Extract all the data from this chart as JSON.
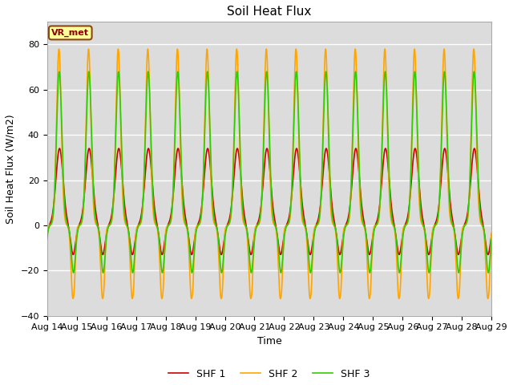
{
  "title": "Soil Heat Flux",
  "ylabel": "Soil Heat Flux (W/m2)",
  "xlabel": "Time",
  "ylim": [
    -40,
    90
  ],
  "yticks": [
    -40,
    -20,
    0,
    20,
    40,
    60,
    80
  ],
  "date_labels": [
    "Aug 14",
    "Aug 15",
    "Aug 16",
    "Aug 17",
    "Aug 18",
    "Aug 19",
    "Aug 20",
    "Aug 21",
    "Aug 22",
    "Aug 23",
    "Aug 24",
    "Aug 25",
    "Aug 26",
    "Aug 27",
    "Aug 28",
    "Aug 29"
  ],
  "plot_bg_color": "#dcdcdc",
  "fig_bg_color": "#ffffff",
  "grid_color": "#ffffff",
  "legend_labels": [
    "SHF 1",
    "SHF 2",
    "SHF 3"
  ],
  "legend_colors": [
    "#cc0000",
    "#ffa500",
    "#33cc00"
  ],
  "annotation_text": "VR_met",
  "annotation_fg": "#8b0000",
  "annotation_bg": "#ffff99",
  "annotation_border": "#8b4513",
  "title_fontsize": 11,
  "axis_fontsize": 9,
  "tick_fontsize": 8,
  "line_width": 1.2,
  "shf1_day_amp": 34,
  "shf1_night_amp": 13,
  "shf2_day_amp": 78,
  "shf2_night_amp": 32,
  "shf3_day_amp": 68,
  "shf3_night_amp": 21
}
